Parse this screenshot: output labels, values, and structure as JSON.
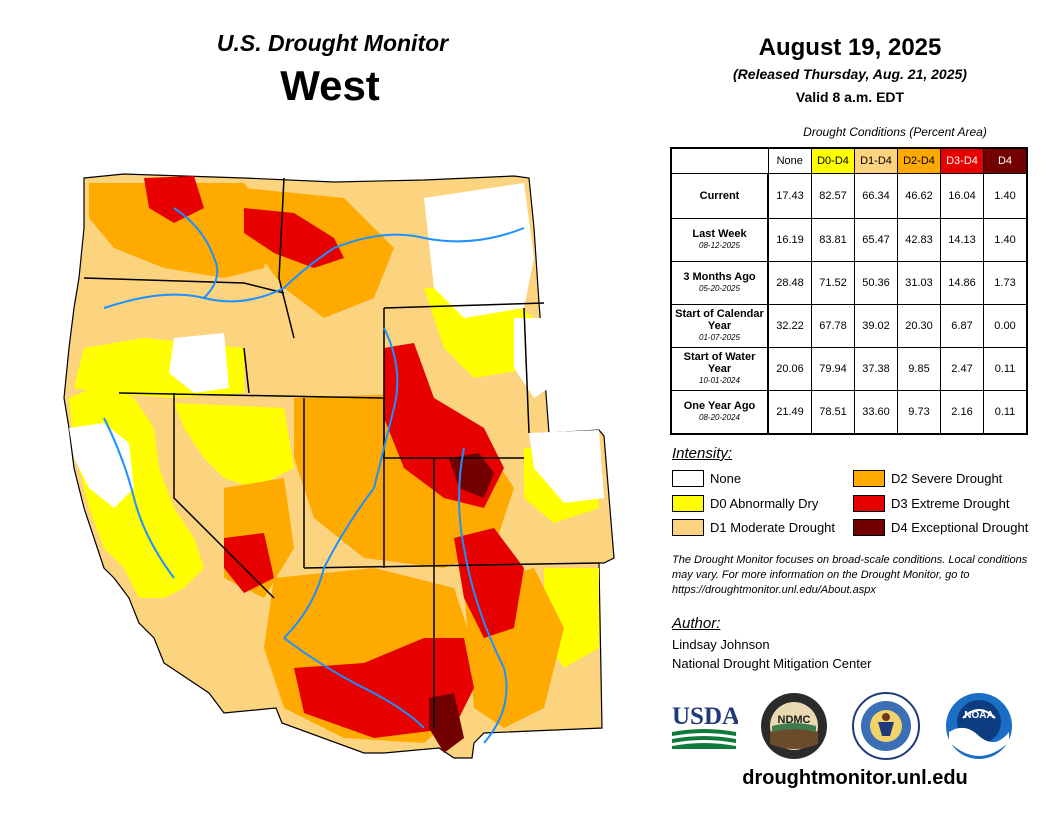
{
  "header": {
    "program": "U.S. Drought Monitor",
    "region": "West"
  },
  "release": {
    "date": "August 19, 2025",
    "released": "(Released Thursday, Aug. 21, 2025)",
    "valid": "Valid 8 a.m. EDT"
  },
  "conditions": {
    "title": "Drought Conditions (Percent Area)",
    "columns": [
      {
        "label": "None",
        "color": "#ffffff",
        "text_color": "#000000"
      },
      {
        "label": "D0-D4",
        "color": "#ffff00",
        "text_color": "#000000"
      },
      {
        "label": "D1-D4",
        "color": "#fcd37f",
        "text_color": "#000000"
      },
      {
        "label": "D2-D4",
        "color": "#ffaa00",
        "text_color": "#000000"
      },
      {
        "label": "D3-D4",
        "color": "#e60000",
        "text_color": "#ffffff"
      },
      {
        "label": "D4",
        "color": "#730000",
        "text_color": "#ffffff"
      }
    ],
    "rows": [
      {
        "label": "Current",
        "sub": "",
        "values": [
          "17.43",
          "82.57",
          "66.34",
          "46.62",
          "16.04",
          "1.40"
        ]
      },
      {
        "label": "Last Week",
        "sub": "08-12-2025",
        "values": [
          "16.19",
          "83.81",
          "65.47",
          "42.83",
          "14.13",
          "1.40"
        ]
      },
      {
        "label": "3 Months Ago",
        "sub": "05-20-2025",
        "values": [
          "28.48",
          "71.52",
          "50.36",
          "31.03",
          "14.86",
          "1.73"
        ]
      },
      {
        "label": "Start of Calendar Year",
        "sub": "01-07-2025",
        "values": [
          "32.22",
          "67.78",
          "39.02",
          "20.30",
          "6.87",
          "0.00"
        ]
      },
      {
        "label": "Start of Water Year",
        "sub": "10-01-2024",
        "values": [
          "20.06",
          "79.94",
          "37.38",
          "9.85",
          "2.47",
          "0.11"
        ]
      },
      {
        "label": "One Year Ago",
        "sub": "08-20-2024",
        "values": [
          "21.49",
          "78.51",
          "33.60",
          "9.73",
          "2.16",
          "0.11"
        ]
      }
    ]
  },
  "intensity": {
    "title": "Intensity:",
    "items": [
      {
        "label": "None",
        "color": "#ffffff"
      },
      {
        "label": "D0 Abnormally Dry",
        "color": "#ffff00"
      },
      {
        "label": "D1 Moderate Drought",
        "color": "#fcd37f"
      },
      {
        "label": "D2 Severe Drought",
        "color": "#ffaa00"
      },
      {
        "label": "D3 Extreme Drought",
        "color": "#e60000"
      },
      {
        "label": "D4 Exceptional Drought",
        "color": "#730000"
      }
    ]
  },
  "note": "The Drought Monitor focuses on broad-scale conditions. Local conditions may vary. For more information on the Drought Monitor, go to https://droughtmonitor.unl.edu/About.aspx",
  "author": {
    "title": "Author:",
    "name": "Lindsay Johnson",
    "org": "National Drought Mitigation Center"
  },
  "logos": {
    "usda": "USDA",
    "ndmc": "NDMC",
    "noaa": "NOAA"
  },
  "website": "droughtmonitor.unl.edu",
  "map_colors": {
    "none": "#ffffff",
    "d0": "#ffff00",
    "d1": "#fcd37f",
    "d2": "#ffaa00",
    "d3": "#e60000",
    "d4": "#730000",
    "rivers": "#1e90ff",
    "borders": "#000000"
  }
}
